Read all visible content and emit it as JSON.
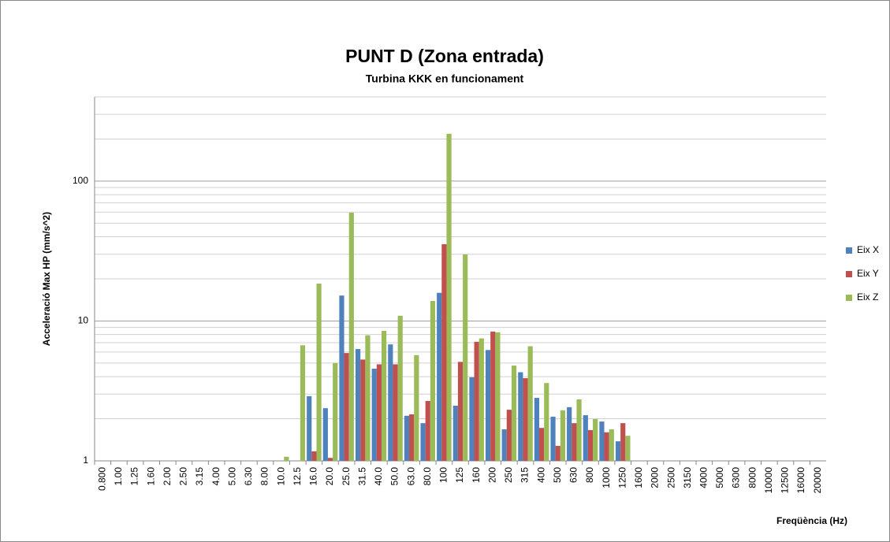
{
  "chart_data": {
    "type": "bar",
    "title": "PUNT D (Zona entrada)",
    "subtitle": "Turbina KKK en funcionament",
    "y_label": "Acceleració Max HP (mm/s^2)",
    "x_label": "Freqüència (Hz)",
    "categories": [
      "0.800",
      "1.00",
      "1.25",
      "1.60",
      "2.00",
      "2.50",
      "3.15",
      "4.00",
      "5.00",
      "6.30",
      "8.00",
      "10.0",
      "12.5",
      "16.0",
      "20.0",
      "25.0",
      "31.5",
      "40.0",
      "50.0",
      "63.0",
      "80.0",
      "100",
      "125",
      "160",
      "200",
      "250",
      "315",
      "400",
      "500",
      "630",
      "800",
      "1000",
      "1250",
      "1600",
      "2000",
      "2500",
      "3150",
      "4000",
      "5000",
      "6300",
      "8000",
      "10000",
      "12500",
      "16000",
      "20000"
    ],
    "series": [
      {
        "name": "Eix X",
        "color": "#4f81bd",
        "values": [
          null,
          null,
          null,
          null,
          null,
          null,
          null,
          null,
          null,
          null,
          null,
          null,
          null,
          2.9,
          2.38,
          15.2,
          6.3,
          4.56,
          6.8,
          2.1,
          1.86,
          15.9,
          2.48,
          3.96,
          6.2,
          1.68,
          4.3,
          2.82,
          2.07,
          2.42,
          2.12,
          1.91,
          1.38,
          null,
          null,
          null,
          null,
          null,
          null,
          null,
          null,
          null,
          null,
          null,
          null
        ]
      },
      {
        "name": "Eix Y",
        "color": "#c0504d",
        "values": [
          null,
          null,
          null,
          null,
          null,
          null,
          null,
          null,
          null,
          null,
          null,
          null,
          null,
          1.17,
          1.05,
          5.9,
          5.3,
          4.9,
          4.9,
          2.15,
          2.68,
          35.4,
          5.1,
          7.1,
          8.4,
          2.32,
          3.9,
          1.72,
          1.28,
          1.86,
          1.66,
          1.6,
          1.86,
          null,
          null,
          null,
          null,
          null,
          null,
          null,
          null,
          null,
          null,
          null,
          null
        ]
      },
      {
        "name": "Eix Z",
        "color": "#9bbb59",
        "values": [
          null,
          null,
          null,
          null,
          null,
          null,
          null,
          null,
          null,
          null,
          null,
          1.07,
          6.7,
          18.5,
          5.0,
          59.5,
          7.9,
          8.5,
          10.9,
          5.7,
          13.9,
          218,
          29.9,
          7.5,
          8.3,
          4.8,
          6.6,
          3.6,
          2.3,
          2.75,
          1.99,
          1.68,
          1.51,
          null,
          null,
          null,
          null,
          null,
          null,
          null,
          null,
          null,
          null,
          null,
          null
        ]
      }
    ],
    "ylim": [
      1,
      400
    ],
    "yticks": [
      1,
      10,
      100
    ],
    "yticks_minor": [
      2,
      3,
      4,
      5,
      6,
      7,
      8,
      9,
      20,
      30,
      40,
      50,
      60,
      70,
      80,
      90,
      200,
      300,
      400
    ],
    "log_y": true,
    "grid": true,
    "legend": "right"
  }
}
